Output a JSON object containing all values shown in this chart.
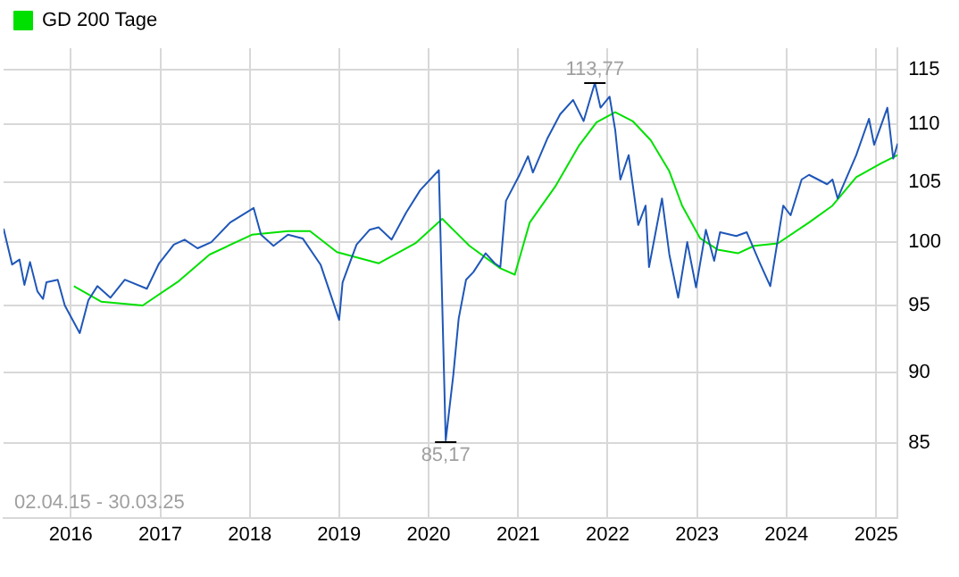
{
  "chart_data": {
    "type": "line",
    "log": "y",
    "grid": true,
    "legend": "top left",
    "marker": "none",
    "line_style": "solid",
    "xlim": [
      "2015-04-02",
      "2025-03-30"
    ],
    "xticks": [
      {
        "value": "2016-01-01",
        "label": "2016"
      },
      {
        "value": "2017-01-01",
        "label": "2017"
      },
      {
        "value": "2018-01-01",
        "label": "2018"
      },
      {
        "value": "2019-01-01",
        "label": "2019"
      },
      {
        "value": "2020-01-01",
        "label": "2020"
      },
      {
        "value": "2021-01-01",
        "label": "2021"
      },
      {
        "value": "2022-01-01",
        "label": "2022"
      },
      {
        "value": "2023-01-01",
        "label": "2023"
      },
      {
        "value": "2024-01-01",
        "label": "2024"
      },
      {
        "value": "2025-01-01",
        "label": "2025"
      }
    ],
    "ylim": [
      80,
      117
    ],
    "yticks": [
      85,
      90,
      95,
      100,
      105,
      110,
      115
    ],
    "series": [
      {
        "color": "#1f57b8",
        "x": [
          "2015-04-02",
          "2015-04-15",
          "2015-05-07",
          "2015-06-06",
          "2015-06-26",
          "2015-07-19",
          "2015-08-18",
          "2015-09-10",
          "2015-09-24",
          "2015-11-09",
          "2015-12-08",
          "2016-02-07",
          "2016-03-13",
          "2016-04-19",
          "2016-06-11",
          "2016-08-09",
          "2016-11-07",
          "2016-12-27",
          "2017-02-25",
          "2017-04-10",
          "2017-06-02",
          "2017-07-28",
          "2017-10-13",
          "2018-01-17",
          "2018-02-16",
          "2018-04-08",
          "2018-06-06",
          "2018-08-05",
          "2018-10-17",
          "2019-01-01",
          "2019-01-15",
          "2019-03-13",
          "2019-05-05",
          "2019-06-11",
          "2019-08-03",
          "2019-10-01",
          "2019-11-28",
          "2020-02-12",
          "2020-03-11",
          "2020-04-11",
          "2020-05-03",
          "2020-06-02",
          "2020-07-02",
          "2020-08-21",
          "2020-09-27",
          "2020-10-20",
          "2020-11-12",
          "2021-01-04",
          "2021-02-10",
          "2021-03-02",
          "2021-05-01",
          "2021-06-21",
          "2021-08-13",
          "2021-09-25",
          "2021-11-10",
          "2021-12-03",
          "2022-01-09",
          "2022-02-01",
          "2022-02-22",
          "2022-03-28",
          "2022-05-06",
          "2022-06-05",
          "2022-06-19",
          "2022-08-11",
          "2022-09-10",
          "2022-10-16",
          "2022-11-22",
          "2022-12-28",
          "2023-02-06",
          "2023-03-12",
          "2023-04-05",
          "2023-06-10",
          "2023-07-23",
          "2023-09-15",
          "2023-10-27",
          "2023-12-19",
          "2024-01-18",
          "2024-03-03",
          "2024-04-02",
          "2024-06-15",
          "2024-07-07",
          "2024-07-28",
          "2024-10-12",
          "2024-12-03",
          "2024-12-24",
          "2025-02-16",
          "2025-03-12",
          "2025-03-30"
        ],
        "values": [
          101.1,
          100.0,
          98.2,
          98.6,
          96.6,
          98.4,
          96.1,
          95.5,
          96.8,
          97.0,
          95.0,
          92.9,
          95.4,
          96.5,
          95.6,
          97.0,
          96.3,
          98.3,
          99.8,
          100.2,
          99.5,
          100.0,
          101.6,
          102.8,
          100.6,
          99.7,
          100.6,
          100.3,
          98.2,
          93.9,
          96.8,
          99.8,
          101.0,
          101.2,
          100.2,
          102.4,
          104.3,
          106.0,
          85.17,
          89.8,
          94.0,
          97.0,
          97.6,
          99.1,
          98.3,
          98.0,
          103.4,
          105.5,
          107.2,
          105.8,
          108.8,
          110.9,
          112.2,
          110.3,
          113.77,
          111.5,
          112.5,
          109.5,
          105.2,
          107.3,
          101.4,
          103.0,
          98.0,
          103.6,
          99.0,
          95.6,
          100.0,
          96.4,
          101.0,
          98.5,
          100.8,
          100.5,
          100.8,
          98.3,
          96.5,
          103.0,
          102.2,
          105.2,
          105.6,
          104.8,
          105.2,
          103.6,
          107.3,
          110.5,
          108.2,
          111.5,
          107.0,
          108.3
        ]
      },
      {
        "name": "GD 200 Tage",
        "color": "#00e000",
        "x": [
          "2016-01-14",
          "2016-05-04",
          "2016-10-21",
          "2017-03-18",
          "2017-07-21",
          "2018-01-10",
          "2018-06-06",
          "2018-09-04",
          "2018-12-23",
          "2019-06-11",
          "2019-11-08",
          "2020-02-26",
          "2020-06-16",
          "2020-10-20",
          "2020-12-18",
          "2021-02-17",
          "2021-06-01",
          "2021-09-05",
          "2021-11-17",
          "2022-02-01",
          "2022-04-13",
          "2022-06-26",
          "2022-09-10",
          "2022-11-01",
          "2023-01-14",
          "2023-03-26",
          "2023-06-17",
          "2023-08-22",
          "2023-11-27",
          "2024-04-02",
          "2024-07-07",
          "2024-10-12",
          "2025-01-23",
          "2025-03-30"
        ],
        "values": [
          96.5,
          95.3,
          95.0,
          96.9,
          99.0,
          100.6,
          100.9,
          100.9,
          99.2,
          98.3,
          99.9,
          101.9,
          99.7,
          97.9,
          97.4,
          101.6,
          104.6,
          108.1,
          110.2,
          111.1,
          110.3,
          108.6,
          105.9,
          103.0,
          100.3,
          99.4,
          99.1,
          99.7,
          99.9,
          101.6,
          103.0,
          105.4,
          106.6,
          107.3
        ]
      }
    ],
    "annotations": [
      {
        "text": "113,77",
        "x": "2021-11-10",
        "y": 113.77
      },
      {
        "text": "85,17",
        "x": "2020-03-11",
        "y": 85.17
      },
      "02.04.15 - 30.03.25"
    ]
  }
}
